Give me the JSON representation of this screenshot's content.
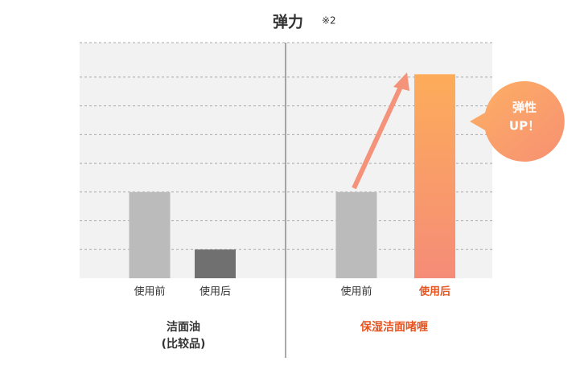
{
  "chart_data": {
    "type": "bar",
    "title": "弹力",
    "title_note": "※2",
    "ylim": [
      0,
      8.2
    ],
    "yticks": [
      1,
      2,
      3,
      4,
      5,
      6,
      7
    ],
    "grid": true,
    "annotation": [
      "弹性",
      "UP！"
    ],
    "groups": [
      {
        "label": [
          "洁面油",
          "(比较品)"
        ],
        "label_color": "#333333",
        "categories": [
          "使用前",
          "使用后"
        ],
        "values": [
          3,
          1
        ],
        "colors": [
          "#bbbbbb",
          "#707070"
        ],
        "category_colors": [
          "#333333",
          "#333333"
        ]
      },
      {
        "label": [
          "保湿洁面啫喱"
        ],
        "label_color": "#e8541e",
        "categories": [
          "使用前",
          "使用后"
        ],
        "values": [
          3,
          7.1
        ],
        "colors": [
          "#bbbbbb",
          "gradient"
        ],
        "category_colors": [
          "#333333",
          "#e8541e"
        ]
      }
    ]
  }
}
